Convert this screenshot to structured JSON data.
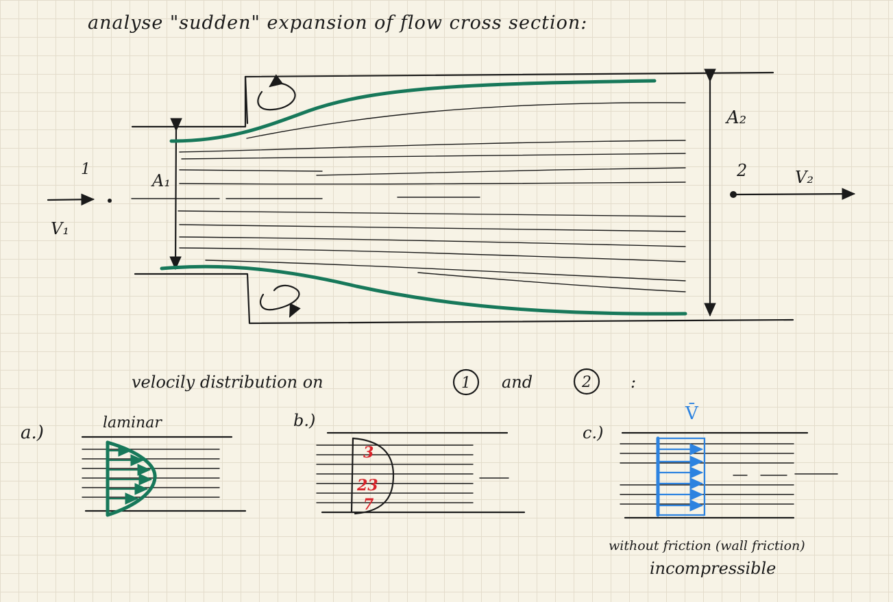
{
  "title": "analyse \"sudden\" expansion of flow cross section:",
  "labels": {
    "a1": "A₁",
    "a2": "A₂",
    "point1": "1",
    "point2": "2",
    "v1": "V₁",
    "v2": "V₂"
  },
  "velocity_heading": {
    "prefix": "velocily distribution on",
    "circle1": "1",
    "and": "and",
    "circle2": "2",
    "suffix": ":"
  },
  "cases": {
    "a": {
      "marker": "a.)",
      "caption": "laminar"
    },
    "b": {
      "marker": "b.)",
      "marks": [
        "3",
        "23",
        "7"
      ]
    },
    "c": {
      "marker": "c.)",
      "symbol": "V̄",
      "note_line1": "without friction (wall friction)",
      "note_line2": "incompressible"
    }
  },
  "colors": {
    "ink": "#1a1a1a",
    "green": "#17785a",
    "red": "#d8232a",
    "blue": "#2d83e0",
    "paper": "#f7f3e6",
    "grid": "#e3dccb"
  }
}
